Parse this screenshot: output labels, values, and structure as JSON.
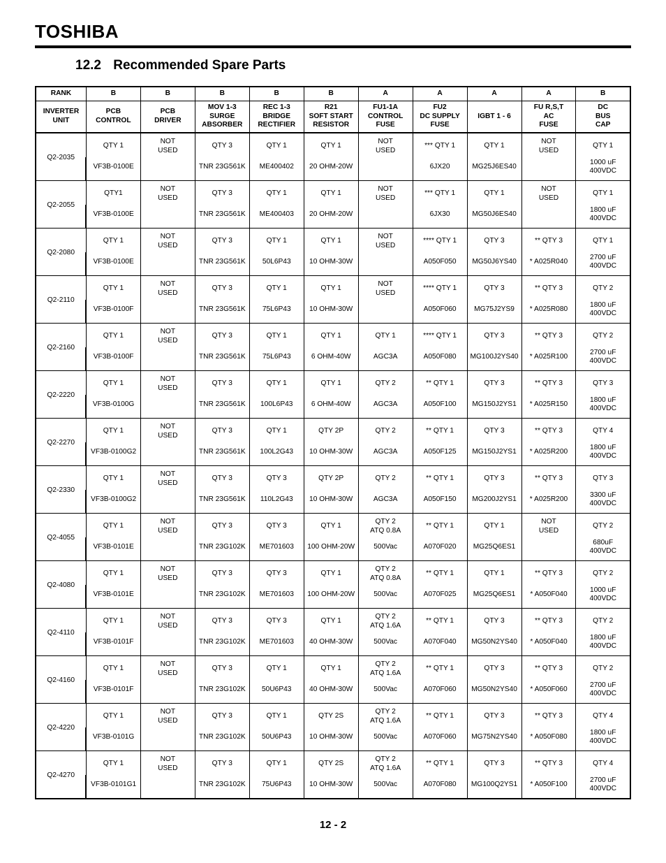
{
  "brand": "TOSHIBA",
  "section_number": "12.2",
  "section_title": "Recommended Spare Parts",
  "page_number": "12 - 2",
  "rank_label": "RANK",
  "unit_label": "INVERTER\nUNIT",
  "columns": [
    {
      "rank": "B",
      "head": "PCB\nCONTROL"
    },
    {
      "rank": "B",
      "head": "PCB\nDRIVER"
    },
    {
      "rank": "B",
      "head": "MOV 1-3\nSURGE\nABSORBER"
    },
    {
      "rank": "B",
      "head": "REC 1-3\nBRIDGE\nRECTIFIER"
    },
    {
      "rank": "B",
      "head": "R21\nSOFT START\nRESISTOR"
    },
    {
      "rank": "A",
      "head": "FU1-1A\nCONTROL\nFUSE"
    },
    {
      "rank": "A",
      "head": "FU2\nDC SUPPLY\nFUSE"
    },
    {
      "rank": "A",
      "head": "IGBT 1 - 6"
    },
    {
      "rank": "A",
      "head": "FU R,S,T\nAC\nFUSE"
    },
    {
      "rank": "B",
      "head": "DC\nBUS\nCAP"
    }
  ],
  "rows": [
    {
      "unit": "Q2-2035",
      "cells": [
        [
          "QTY 1",
          "VF3B-0100E"
        ],
        [
          "NOT\nUSED",
          ""
        ],
        [
          "QTY 3",
          "TNR 23G561K"
        ],
        [
          "QTY 1",
          "ME400402"
        ],
        [
          "QTY 1",
          "20 OHM-20W"
        ],
        [
          "NOT\nUSED",
          ""
        ],
        [
          "*** QTY 1",
          "6JX20"
        ],
        [
          "QTY 1",
          "MG25J6ES40"
        ],
        [
          "NOT\nUSED",
          ""
        ],
        [
          "QTY 1",
          "1000 uF\n400VDC"
        ]
      ]
    },
    {
      "unit": "Q2-2055",
      "cells": [
        [
          "QTY1",
          "VF3B-0100E"
        ],
        [
          "NOT\nUSED",
          ""
        ],
        [
          "QTY 3",
          "TNR 23G561K"
        ],
        [
          "QTY 1",
          "ME400403"
        ],
        [
          "QTY 1",
          "20 OHM-20W"
        ],
        [
          "NOT\nUSED",
          ""
        ],
        [
          "*** QTY 1",
          "6JX30"
        ],
        [
          "QTY 1",
          "MG50J6ES40"
        ],
        [
          "NOT\nUSED",
          ""
        ],
        [
          "QTY 1",
          "1800 uF\n400VDC"
        ]
      ]
    },
    {
      "unit": "Q2-2080",
      "cells": [
        [
          "QTY 1",
          "VF3B-0100E"
        ],
        [
          "NOT\nUSED",
          ""
        ],
        [
          "QTY 3",
          "TNR 23G561K"
        ],
        [
          "QTY 1",
          "50L6P43"
        ],
        [
          "QTY 1",
          "10 OHM-30W"
        ],
        [
          "NOT\nUSED",
          ""
        ],
        [
          "**** QTY 1",
          "A050F050"
        ],
        [
          "QTY 3",
          "MG50J6YS40"
        ],
        [
          "** QTY 3",
          "* A025R040"
        ],
        [
          "QTY 1",
          "2700 uF\n400VDC"
        ]
      ]
    },
    {
      "unit": "Q2-2110",
      "cells": [
        [
          "QTY 1",
          "VF3B-0100F"
        ],
        [
          "NOT\nUSED",
          ""
        ],
        [
          "QTY 3",
          "TNR 23G561K"
        ],
        [
          "QTY 1",
          "75L6P43"
        ],
        [
          "QTY 1",
          "10 OHM-30W"
        ],
        [
          "NOT\nUSED",
          ""
        ],
        [
          "**** QTY 1",
          "A050F060"
        ],
        [
          "QTY 3",
          "MG75J2YS9"
        ],
        [
          "** QTY 3",
          "* A025R080"
        ],
        [
          "QTY 2",
          "1800 uF\n400VDC"
        ]
      ]
    },
    {
      "unit": "Q2-2160",
      "cells": [
        [
          "QTY 1",
          "VF3B-0100F"
        ],
        [
          "NOT\nUSED",
          ""
        ],
        [
          "QTY 3",
          "TNR 23G561K"
        ],
        [
          "QTY 1",
          "75L6P43"
        ],
        [
          "QTY 1",
          "6 OHM-40W"
        ],
        [
          "QTY 1",
          "AGC3A"
        ],
        [
          "**** QTY 1",
          "A050F080"
        ],
        [
          "QTY 3",
          "MG100J2YS40"
        ],
        [
          "** QTY 3",
          "* A025R100"
        ],
        [
          "QTY 2",
          "2700 uF\n400VDC"
        ]
      ]
    },
    {
      "unit": "Q2-2220",
      "cells": [
        [
          "QTY 1",
          "VF3B-0100G"
        ],
        [
          "NOT\nUSED",
          ""
        ],
        [
          "QTY 3",
          "TNR 23G561K"
        ],
        [
          "QTY 1",
          "100L6P43"
        ],
        [
          "QTY 1",
          "6 OHM-40W"
        ],
        [
          "QTY 2",
          "AGC3A"
        ],
        [
          "** QTY 1",
          "A050F100"
        ],
        [
          "QTY 3",
          "MG150J2YS1"
        ],
        [
          "** QTY 3",
          "* A025R150"
        ],
        [
          "QTY 3",
          "1800 uF\n400VDC"
        ]
      ]
    },
    {
      "unit": "Q2-2270",
      "cells": [
        [
          "QTY 1",
          "VF3B-0100G2"
        ],
        [
          "NOT\nUSED",
          ""
        ],
        [
          "QTY 3",
          "TNR 23G561K"
        ],
        [
          "QTY 1",
          "100L2G43"
        ],
        [
          "QTY 2P",
          "10 OHM-30W"
        ],
        [
          "QTY 2",
          "AGC3A"
        ],
        [
          "** QTY 1",
          "A050F125"
        ],
        [
          "QTY 3",
          "MG150J2YS1"
        ],
        [
          "** QTY 3",
          "* A025R200"
        ],
        [
          "QTY 4",
          "1800 uF\n400VDC"
        ]
      ]
    },
    {
      "unit": "Q2-2330",
      "cells": [
        [
          "QTY 1",
          "VF3B-0100G2"
        ],
        [
          "NOT\nUSED",
          ""
        ],
        [
          "QTY 3",
          "TNR 23G561K"
        ],
        [
          "QTY 3",
          "110L2G43"
        ],
        [
          "QTY 2P",
          "10 OHM-30W"
        ],
        [
          "QTY 2",
          "AGC3A"
        ],
        [
          "** QTY 1",
          "A050F150"
        ],
        [
          "QTY 3",
          "MG200J2YS1"
        ],
        [
          "** QTY 3",
          "* A025R200"
        ],
        [
          "QTY 3",
          "3300 uF\n400VDC"
        ]
      ]
    },
    {
      "unit": "Q2-4055",
      "cells": [
        [
          "QTY 1",
          "VF3B-0101E"
        ],
        [
          "NOT\nUSED",
          ""
        ],
        [
          "QTY 3",
          "TNR 23G102K"
        ],
        [
          "QTY 3",
          "ME701603"
        ],
        [
          "QTY 1",
          "100 OHM-20W"
        ],
        [
          "QTY 2\nATQ 0.8A",
          "500Vac"
        ],
        [
          "** QTY 1",
          "A070F020"
        ],
        [
          "QTY 1",
          "MG25Q6ES1"
        ],
        [
          "NOT\nUSED",
          ""
        ],
        [
          "QTY 2",
          "680uF\n400VDC"
        ]
      ]
    },
    {
      "unit": "Q2-4080",
      "cells": [
        [
          "QTY 1",
          "VF3B-0101E"
        ],
        [
          "NOT\nUSED",
          ""
        ],
        [
          "QTY 3",
          "TNR 23G102K"
        ],
        [
          "QTY 3",
          "ME701603"
        ],
        [
          "QTY 1",
          "100 OHM-20W"
        ],
        [
          "QTY 2\nATQ 0.8A",
          "500Vac"
        ],
        [
          "** QTY 1",
          "A070F025"
        ],
        [
          "QTY 1",
          "MG25Q6ES1"
        ],
        [
          "** QTY 3",
          "* A050F040"
        ],
        [
          "QTY 2",
          "1000 uF\n400VDC"
        ]
      ]
    },
    {
      "unit": "Q2-4110",
      "cells": [
        [
          "QTY 1",
          "VF3B-0101F"
        ],
        [
          "NOT\nUSED",
          ""
        ],
        [
          "QTY 3",
          "TNR 23G102K"
        ],
        [
          "QTY 3",
          "ME701603"
        ],
        [
          "QTY 1",
          "40 OHM-30W"
        ],
        [
          "QTY 2\nATQ 1.6A",
          "500Vac"
        ],
        [
          "** QTY 1",
          "A070F040"
        ],
        [
          "QTY 3",
          "MG50N2YS40"
        ],
        [
          "** QTY 3",
          "* A050F040"
        ],
        [
          "QTY 2",
          "1800 uF\n400VDC"
        ]
      ]
    },
    {
      "unit": "Q2-4160",
      "cells": [
        [
          "QTY 1",
          "VF3B-0101F"
        ],
        [
          "NOT\nUSED",
          ""
        ],
        [
          "QTY 3",
          "TNR 23G102K"
        ],
        [
          "QTY 1",
          "50U6P43"
        ],
        [
          "QTY 1",
          "40 OHM-30W"
        ],
        [
          "QTY 2\nATQ 1.6A",
          "500Vac"
        ],
        [
          "** QTY 1",
          "A070F060"
        ],
        [
          "QTY 3",
          "MG50N2YS40"
        ],
        [
          "** QTY 3",
          "* A050F060"
        ],
        [
          "QTY 2",
          "2700 uF\n400VDC"
        ]
      ]
    },
    {
      "unit": "Q2-4220",
      "cells": [
        [
          "QTY 1",
          "VF3B-0101G"
        ],
        [
          "NOT\nUSED",
          ""
        ],
        [
          "QTY 3",
          "TNR 23G102K"
        ],
        [
          "QTY 1",
          "50U6P43"
        ],
        [
          "QTY 2S",
          "10 OHM-30W"
        ],
        [
          "QTY 2\nATQ 1.6A",
          "500Vac"
        ],
        [
          "** QTY 1",
          "A070F060"
        ],
        [
          "QTY 3",
          "MG75N2YS40"
        ],
        [
          "** QTY 3",
          "* A050F080"
        ],
        [
          "QTY 4",
          "1800 uF\n400VDC"
        ]
      ]
    },
    {
      "unit": "Q2-4270",
      "cells": [
        [
          "QTY 1",
          "VF3B-0101G1"
        ],
        [
          "NOT\nUSED",
          ""
        ],
        [
          "QTY 3",
          "TNR 23G102K"
        ],
        [
          "QTY 1",
          "75U6P43"
        ],
        [
          "QTY 2S",
          "10 OHM-30W"
        ],
        [
          "QTY 2\nATQ 1.6A",
          "500Vac"
        ],
        [
          "** QTY 1",
          "A070F080"
        ],
        [
          "QTY 3",
          "MG100Q2YS1"
        ],
        [
          "** QTY 3",
          "* A050F100"
        ],
        [
          "QTY 4",
          "2700 uF\n400VDC"
        ]
      ]
    }
  ]
}
